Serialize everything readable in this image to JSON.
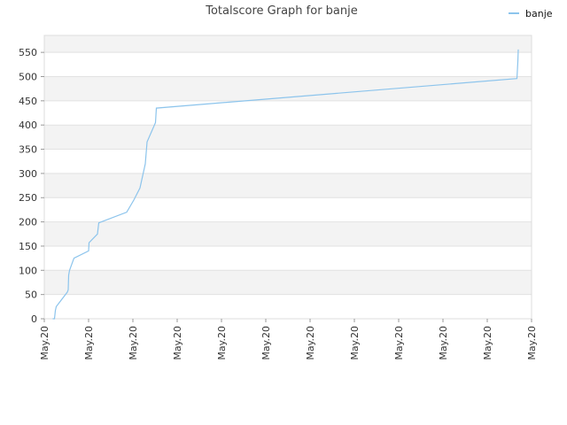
{
  "chart_data": {
    "type": "line",
    "title": "Totalscore Graph for banje",
    "xlabel": "",
    "ylabel": "",
    "ylim": [
      0,
      585
    ],
    "yticks": [
      0,
      50,
      100,
      150,
      200,
      250,
      300,
      350,
      400,
      450,
      500,
      550
    ],
    "xlim": [
      0,
      11
    ],
    "xticks": [
      "May.20",
      "May.20",
      "May.20",
      "May.20",
      "May.20",
      "May.20",
      "May.20",
      "May.20",
      "May.20",
      "May.20",
      "May.20",
      "May.20"
    ],
    "grid": "horizontal banded",
    "legend_position": "top-right",
    "line_color": "#8cc4ec",
    "series": [
      {
        "name": "banje",
        "points": [
          [
            0.19,
            0
          ],
          [
            0.23,
            0
          ],
          [
            0.25,
            17
          ],
          [
            0.27,
            25
          ],
          [
            0.52,
            55
          ],
          [
            0.54,
            60
          ],
          [
            0.55,
            90
          ],
          [
            0.57,
            100
          ],
          [
            0.67,
            125
          ],
          [
            1.0,
            140
          ],
          [
            1.01,
            157
          ],
          [
            1.2,
            175
          ],
          [
            1.23,
            198
          ],
          [
            1.86,
            220
          ],
          [
            2.02,
            245
          ],
          [
            2.16,
            270
          ],
          [
            2.28,
            320
          ],
          [
            2.32,
            365
          ],
          [
            2.51,
            405
          ],
          [
            2.53,
            435
          ],
          [
            10.67,
            496
          ],
          [
            10.69,
            530
          ],
          [
            10.7,
            556
          ]
        ]
      }
    ]
  }
}
